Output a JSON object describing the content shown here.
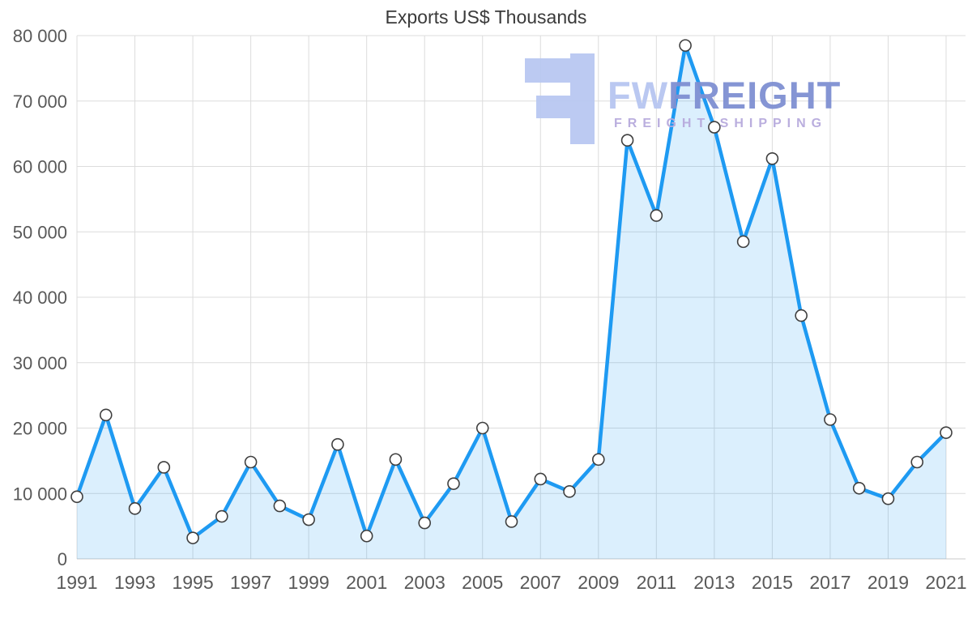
{
  "chart_data": {
    "type": "area",
    "title": "Exports US$ Thousands",
    "xlabel": "",
    "ylabel": "",
    "years": [
      1991,
      1992,
      1993,
      1994,
      1995,
      1996,
      1997,
      1998,
      1999,
      2000,
      2001,
      2002,
      2003,
      2004,
      2005,
      2006,
      2007,
      2008,
      2009,
      2010,
      2011,
      2012,
      2013,
      2014,
      2015,
      2016,
      2017,
      2018,
      2019,
      2020,
      2021
    ],
    "values": [
      9500,
      22000,
      7700,
      14000,
      3200,
      6500,
      14800,
      8100,
      6000,
      17500,
      3500,
      15200,
      5500,
      11500,
      20000,
      5700,
      12200,
      10300,
      15200,
      64000,
      52500,
      78500,
      66000,
      48500,
      61200,
      37200,
      21300,
      10800,
      9200,
      14800,
      19300
    ],
    "xticks": [
      1991,
      1993,
      1995,
      1997,
      1999,
      2001,
      2003,
      2005,
      2007,
      2009,
      2011,
      2013,
      2015,
      2017,
      2019,
      2021
    ],
    "ylim": [
      0,
      80000
    ],
    "ytick_step": 10000,
    "ytick_labels": [
      "0",
      "10 000",
      "20 000",
      "30 000",
      "40 000",
      "50 000",
      "60 000",
      "70 000",
      "80 000"
    ],
    "grid": "both",
    "legend": "none",
    "colors": {
      "line": "#1e9af2",
      "area": "rgba(30,154,242,0.16)",
      "marker_fill": "#ffffff",
      "marker_stroke": "#3f3f3f",
      "grid": "#dcdcdc",
      "axis_line": "#c9c9c9",
      "axis_text": "#595959",
      "title_text": "#3a3a3a"
    }
  },
  "watermark": {
    "title_left": "FW",
    "title_right": "FREIGHT",
    "subtitle": "FREIGHT SHIPPING"
  }
}
